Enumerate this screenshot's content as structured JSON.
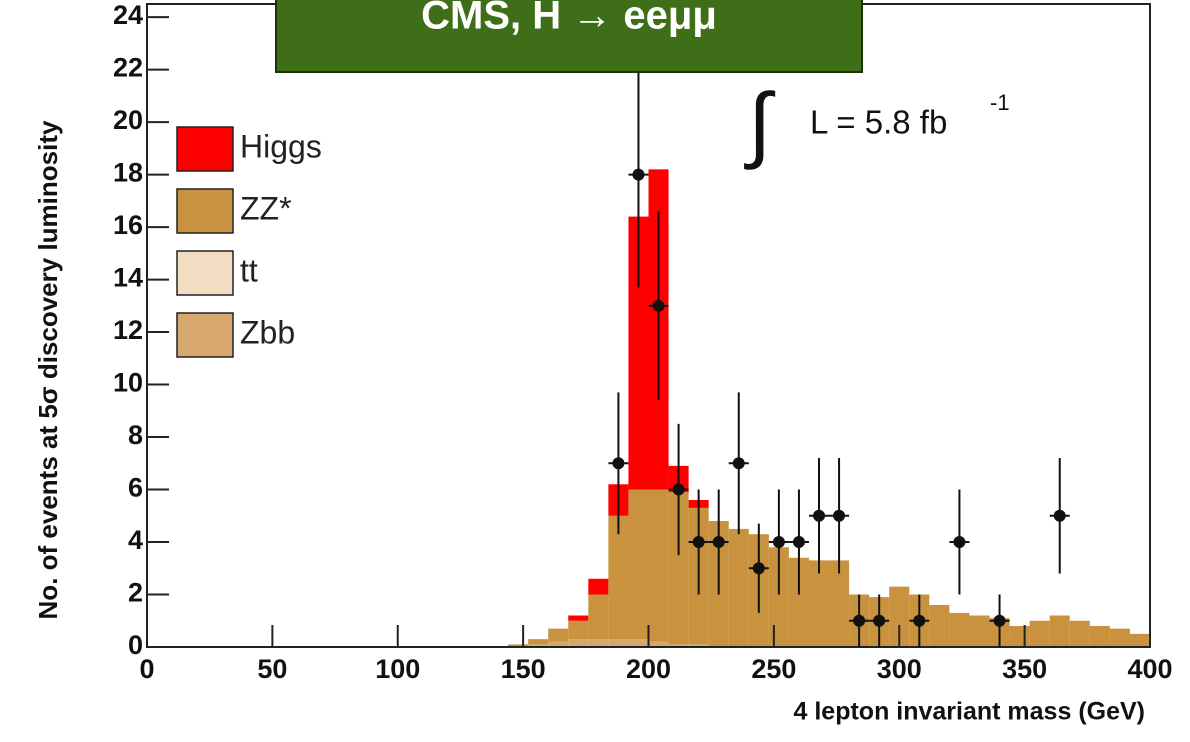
{
  "chart_data": {
    "type": "histogram",
    "title": "CMS, H → eeμμ",
    "y_label": "No. of events at 5σ discovery luminosity",
    "x_label": "4 lepton invariant mass (GeV)",
    "integral_sign": "∫",
    "lumi_label": "L = 5.8 fb",
    "lumi_exponent": "-1",
    "xlim": [
      0,
      400
    ],
    "ylim": [
      0,
      24.5
    ],
    "xticks": [
      0,
      50,
      100,
      150,
      200,
      250,
      300,
      350,
      400
    ],
    "yticks": [
      0,
      2,
      4,
      6,
      8,
      10,
      12,
      14,
      16,
      18,
      20,
      22,
      24
    ],
    "bins": [
      144,
      152,
      160,
      168,
      176,
      184,
      192,
      200,
      208,
      216,
      224,
      232,
      240,
      248,
      256,
      264,
      272,
      280,
      288,
      296,
      304,
      312,
      320,
      328,
      336,
      344,
      352,
      360,
      368,
      376,
      384,
      392,
      400
    ],
    "series": [
      {
        "name": "Higgs",
        "color": "#ff0000",
        "values": [
          0,
          0,
          0,
          0.2,
          0.6,
          1.2,
          10.4,
          12.2,
          1.0,
          0.3,
          0,
          0,
          0,
          0,
          0,
          0,
          0,
          0,
          0,
          0,
          0,
          0,
          0,
          0,
          0,
          0,
          0,
          0,
          0,
          0,
          0,
          0
        ]
      },
      {
        "name": "ZZ*",
        "color": "#c8923e",
        "values": [
          0.1,
          0.2,
          0.5,
          0.7,
          1.7,
          4.7,
          5.7,
          5.8,
          5.8,
          5.2,
          4.8,
          4.5,
          4.3,
          3.8,
          3.4,
          3.3,
          3.3,
          2.0,
          1.9,
          2.3,
          2.0,
          1.6,
          1.3,
          1.2,
          1.1,
          0.8,
          1.0,
          1.2,
          1.0,
          0.8,
          0.7,
          0.5
        ]
      },
      {
        "name": "tt",
        "color": "#f2dcc2",
        "values": [
          0,
          0,
          0,
          0,
          0,
          0,
          0,
          0,
          0,
          0,
          0,
          0,
          0,
          0,
          0,
          0,
          0,
          0,
          0,
          0,
          0,
          0,
          0,
          0,
          0,
          0,
          0,
          0,
          0,
          0,
          0,
          0
        ]
      },
      {
        "name": "Zbb",
        "color": "#d6a86e",
        "values": [
          0,
          0.1,
          0.2,
          0.3,
          0.3,
          0.3,
          0.3,
          0.2,
          0.1,
          0.1,
          0,
          0,
          0,
          0,
          0,
          0,
          0,
          0,
          0,
          0,
          0,
          0,
          0,
          0,
          0,
          0,
          0,
          0,
          0,
          0,
          0,
          0
        ]
      }
    ],
    "points": {
      "x": [
        188,
        196,
        204,
        212,
        220,
        228,
        236,
        244,
        252,
        260,
        268,
        276,
        284,
        292,
        308,
        324,
        340,
        364
      ],
      "values": [
        7,
        18,
        13,
        6,
        4,
        4,
        7,
        3,
        4,
        4,
        5,
        5,
        1,
        1,
        1,
        4,
        1,
        5
      ],
      "errors": [
        2.7,
        4.3,
        3.6,
        2.5,
        2,
        2,
        2.7,
        1.7,
        2,
        2,
        2.2,
        2.2,
        1,
        1,
        1,
        2,
        1,
        2.2
      ]
    }
  }
}
